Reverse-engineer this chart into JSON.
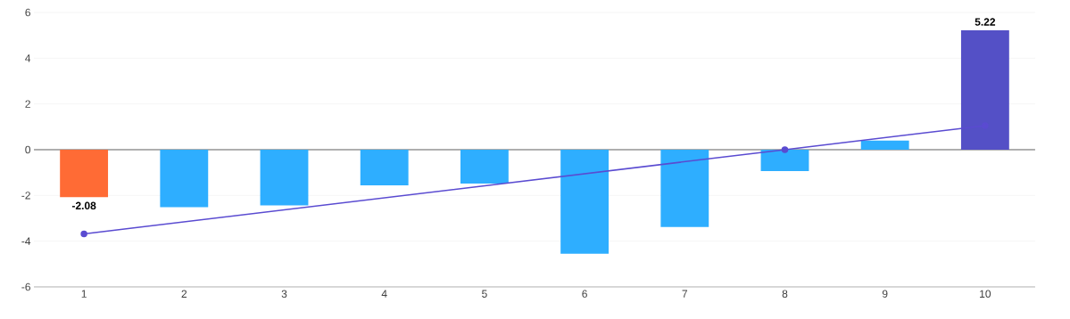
{
  "chart_data": {
    "type": "bar",
    "categories": [
      "1",
      "2",
      "3",
      "4",
      "5",
      "6",
      "7",
      "8",
      "9",
      "10"
    ],
    "ylim": [
      -6,
      6
    ],
    "yticks": [
      -6,
      -4,
      -2,
      0,
      2,
      4,
      6
    ],
    "grid": "y",
    "series": [
      {
        "values": [
          -2.08,
          -2.51,
          -2.44,
          -1.56,
          -1.48,
          -4.55,
          -3.38,
          -0.94,
          0.4,
          5.22
        ],
        "colors": [
          "#ff6b35",
          "#2eaeff",
          "#2eaeff",
          "#2eaeff",
          "#2eaeff",
          "#2eaeff",
          "#2eaeff",
          "#2eaeff",
          "#2eaeff",
          "#5450c6"
        ],
        "value_labels": [
          "-2.08",
          null,
          null,
          null,
          null,
          null,
          null,
          null,
          null,
          "5.22"
        ]
      },
      {
        "type": "line",
        "x": [
          "1",
          "8",
          "10"
        ],
        "values": [
          -3.68,
          0.0,
          1.05
        ],
        "color": "#5a4bd1",
        "marker": "circle",
        "line_style": "solid"
      }
    ]
  }
}
